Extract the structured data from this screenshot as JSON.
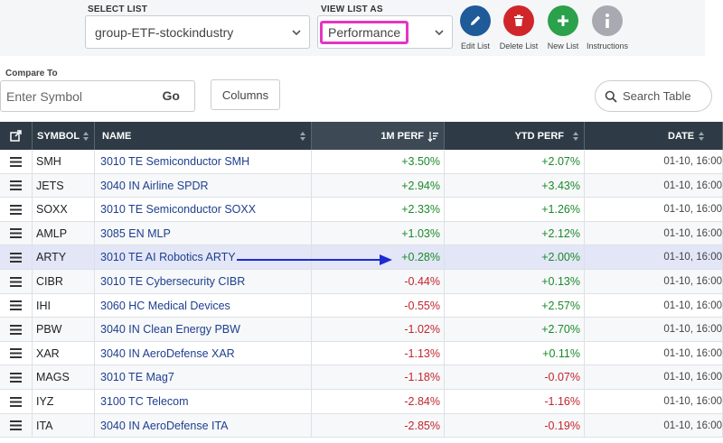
{
  "header": {
    "select_list_label": "SELECT LIST",
    "select_list_value": "group-ETF-stockindustry",
    "view_list_label": "VIEW LIST AS",
    "view_list_value": "Performance",
    "actions": [
      {
        "label": "Edit List",
        "color": "#1f5a99",
        "icon": "pencil-icon"
      },
      {
        "label": "Delete List",
        "color": "#d0262a",
        "icon": "trash-icon"
      },
      {
        "label": "New List",
        "color": "#2aa14a",
        "icon": "plus-icon"
      },
      {
        "label": "Instructions",
        "color": "#a7aab0",
        "icon": "info-icon"
      }
    ]
  },
  "compare": {
    "label": "Compare To",
    "placeholder": "Enter Symbol",
    "go_label": "Go",
    "columns_label": "Columns",
    "search_placeholder": "Search Table"
  },
  "table": {
    "columns": [
      "SYMBOL",
      "NAME",
      "1M PERF",
      "YTD PERF",
      "DATE"
    ],
    "rows": [
      {
        "symbol": "SMH",
        "name": "3010 TE Semiconductor SMH",
        "perf_1m": "+3.50%",
        "perf_ytd": "+2.07%",
        "date": "01-10, 16:00"
      },
      {
        "symbol": "JETS",
        "name": "3040 IN Airline SPDR",
        "perf_1m": "+2.94%",
        "perf_ytd": "+3.43%",
        "date": "01-10, 16:00"
      },
      {
        "symbol": "SOXX",
        "name": "3010 TE Semiconductor SOXX",
        "perf_1m": "+2.33%",
        "perf_ytd": "+1.26%",
        "date": "01-10, 16:00"
      },
      {
        "symbol": "AMLP",
        "name": "3085 EN MLP",
        "perf_1m": "+1.03%",
        "perf_ytd": "+2.12%",
        "date": "01-10, 16:00"
      },
      {
        "symbol": "ARTY",
        "name": "3010 TE AI Robotics ARTY",
        "perf_1m": "+0.28%",
        "perf_ytd": "+2.00%",
        "date": "01-10, 16:00"
      },
      {
        "symbol": "CIBR",
        "name": "3010 TE Cybersecurity CIBR",
        "perf_1m": "-0.44%",
        "perf_ytd": "+0.13%",
        "date": "01-10, 16:00"
      },
      {
        "symbol": "IHI",
        "name": "3060 HC Medical Devices",
        "perf_1m": "-0.55%",
        "perf_ytd": "+2.57%",
        "date": "01-10, 16:00"
      },
      {
        "symbol": "PBW",
        "name": "3040 IN Clean Energy PBW",
        "perf_1m": "-1.02%",
        "perf_ytd": "+2.70%",
        "date": "01-10, 16:00"
      },
      {
        "symbol": "XAR",
        "name": "3040 IN AeroDefense XAR",
        "perf_1m": "-1.13%",
        "perf_ytd": "+0.11%",
        "date": "01-10, 16:00"
      },
      {
        "symbol": "MAGS",
        "name": "3010 TE Mag7",
        "perf_1m": "-1.18%",
        "perf_ytd": "-0.07%",
        "date": "01-10, 16:00"
      },
      {
        "symbol": "IYZ",
        "name": "3100 TC Telecom",
        "perf_1m": "-2.84%",
        "perf_ytd": "-1.16%",
        "date": "01-10, 16:00"
      },
      {
        "symbol": "ITA",
        "name": "3040 IN AeroDefense ITA",
        "perf_1m": "-2.85%",
        "perf_ytd": "-0.19%",
        "date": "01-10, 16:00"
      }
    ],
    "highlighted_symbol": "ARTY",
    "colors": {
      "positive": "#1a8a2a",
      "negative": "#c0262d",
      "annotation_arrow": "#1a2bd1"
    }
  }
}
